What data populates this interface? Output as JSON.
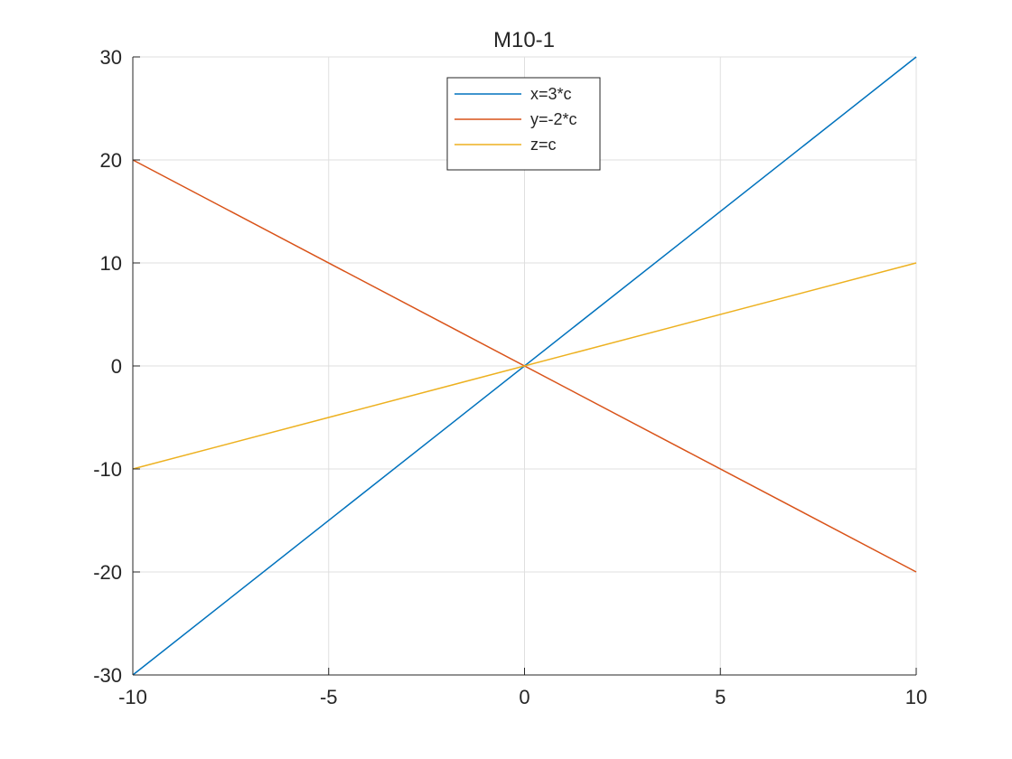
{
  "chart_data": {
    "type": "line",
    "title": "M10-1",
    "xlabel": "",
    "ylabel": "",
    "xlim": [
      -10,
      10
    ],
    "ylim": [
      -30,
      30
    ],
    "xticks": [
      -10,
      -5,
      0,
      5,
      10
    ],
    "xtick_labels": [
      "-10",
      "-5",
      "0",
      "5",
      "10"
    ],
    "yticks": [
      -30,
      -20,
      -10,
      0,
      10,
      20,
      30
    ],
    "ytick_labels": [
      "-30",
      "-20",
      "-10",
      "0",
      "10",
      "20",
      "30"
    ],
    "grid": true,
    "legend_position": "top-center",
    "series": [
      {
        "name": "x=3*c",
        "color": "#0072BD",
        "x": [
          -10,
          10
        ],
        "y": [
          -30,
          30
        ]
      },
      {
        "name": "y=-2*c",
        "color": "#D95319",
        "x": [
          -10,
          10
        ],
        "y": [
          20,
          -20
        ]
      },
      {
        "name": "z=c",
        "color": "#EDB120",
        "x": [
          -10,
          10
        ],
        "y": [
          -10,
          10
        ]
      }
    ]
  }
}
